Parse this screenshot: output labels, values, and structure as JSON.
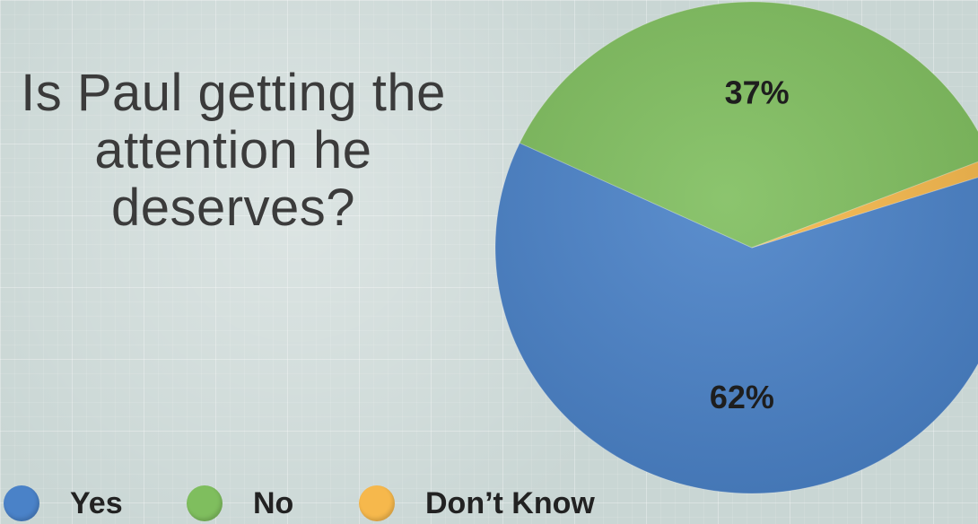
{
  "chart_data": {
    "type": "pie",
    "title": "Is Paul getting the attention he deserves?",
    "slices": [
      {
        "label": "Yes",
        "value": 62,
        "display": "62%",
        "color": "#4a82c8"
      },
      {
        "label": "No",
        "value": 37,
        "display": "37%",
        "color": "#7fbe5e"
      },
      {
        "label": "Don’t Know",
        "value": 1,
        "display": "1%",
        "color": "#f6b84c"
      }
    ],
    "legend": {
      "placement": "bottom-left"
    }
  }
}
